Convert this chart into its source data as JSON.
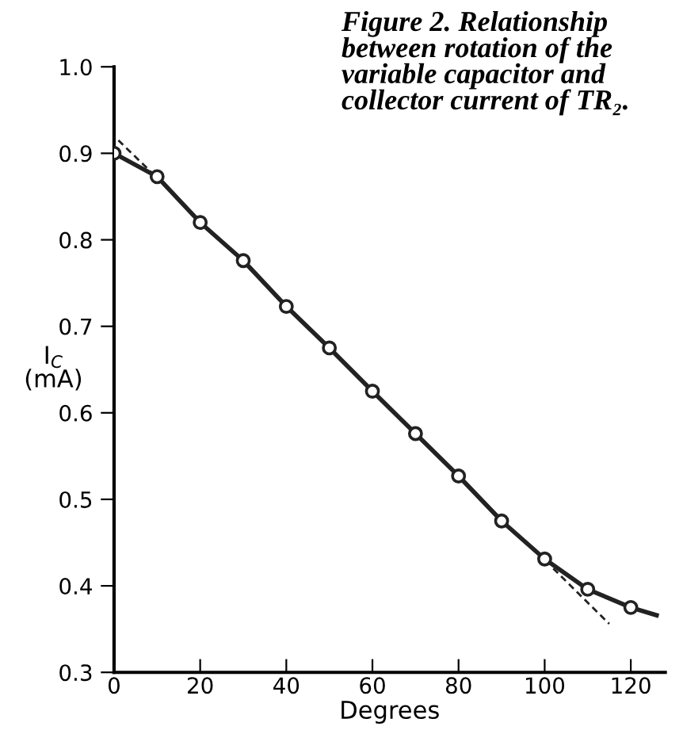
{
  "chart_data": {
    "type": "line",
    "title": "Figure 2. Relationship between rotation of the variable capacitor and collector current of TR₂.",
    "xlabel": "Degrees",
    "ylabel": "I$_{C}$\n(mA)",
    "series": [
      {
        "color": "#222222",
        "line_style": "solid",
        "marker": "none",
        "x": [
          0,
          10,
          20,
          30,
          40,
          50,
          60,
          70,
          80,
          90,
          100,
          110,
          120,
          126
        ],
        "values": [
          0.9,
          0.873,
          0.82,
          0.776,
          0.723,
          0.675,
          0.625,
          0.576,
          0.527,
          0.475,
          0.431,
          0.396,
          0.375,
          0.366
        ]
      },
      {
        "type": "scatter",
        "color": "#222222",
        "marker": "circle",
        "x": [
          0,
          10,
          20,
          30,
          40,
          50,
          60,
          70,
          80,
          90,
          100,
          110,
          120
        ],
        "values": [
          0.9,
          0.873,
          0.82,
          0.776,
          0.723,
          0.675,
          0.625,
          0.576,
          0.527,
          0.475,
          0.431,
          0.396,
          0.375
        ]
      },
      {
        "type": "line",
        "color": "#222222",
        "line_style": "dashed",
        "marker": "none",
        "x": [
          1,
          12
        ],
        "values": [
          0.915,
          0.862
        ]
      },
      {
        "type": "line",
        "color": "#222222",
        "line_style": "dashed",
        "marker": "none",
        "x": [
          102,
          115
        ],
        "values": [
          0.42,
          0.356
        ]
      }
    ],
    "xlim": [
      0,
      128
    ],
    "ylim": [
      0.3,
      1.0
    ],
    "xticks": [
      0,
      20,
      40,
      60,
      80,
      100,
      120
    ],
    "yticks": [
      0.3,
      0.4,
      0.5,
      0.6,
      0.7,
      0.8,
      0.9,
      {
        "value": 1.0,
        "label": "1.0"
      }
    ],
    "grid": false,
    "legend": false
  }
}
